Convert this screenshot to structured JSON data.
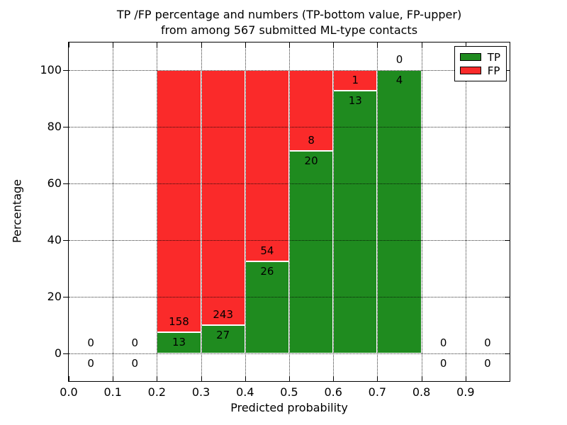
{
  "figure": {
    "title_line1": "TP /FP percentage and numbers (TP-bottom value, FP-upper)",
    "title_line2": "from among 567 submitted ML-type contacts"
  },
  "chart_data": {
    "type": "bar",
    "subtype": "stacked-percentage-histogram",
    "title": "TP /FP percentage and numbers (TP-bottom value, FP-upper)\nfrom among 567 submitted ML-type contacts",
    "xlabel": "Predicted probability",
    "ylabel": "Percentage",
    "total_contacts": 567,
    "xlim": [
      0.0,
      1.0
    ],
    "ylim": [
      -9.75,
      109.75
    ],
    "x_ticks": [
      0.0,
      0.1,
      0.2,
      0.3,
      0.4,
      0.5,
      0.6,
      0.7,
      0.8,
      0.9
    ],
    "x_tick_labels": [
      "0.0",
      "0.1",
      "0.2",
      "0.3",
      "0.4",
      "0.5",
      "0.6",
      "0.7",
      "0.8",
      "0.9"
    ],
    "y_ticks": [
      0,
      20,
      40,
      60,
      80,
      100
    ],
    "y_tick_labels": [
      "0",
      "20",
      "40",
      "60",
      "80",
      "100"
    ],
    "grid": "dotted black, both axes, drawn over bars",
    "bin_width": 0.1,
    "bins": [
      {
        "range": [
          0.0,
          0.1
        ],
        "tp": 0,
        "fp": 0,
        "tp_pct": 0,
        "fp_pct": 0
      },
      {
        "range": [
          0.1,
          0.2
        ],
        "tp": 0,
        "fp": 0,
        "tp_pct": 0,
        "fp_pct": 0
      },
      {
        "range": [
          0.2,
          0.3
        ],
        "tp": 13,
        "fp": 158,
        "tp_pct": 7.6,
        "fp_pct": 92.4
      },
      {
        "range": [
          0.3,
          0.4
        ],
        "tp": 27,
        "fp": 243,
        "tp_pct": 10.0,
        "fp_pct": 90.0
      },
      {
        "range": [
          0.4,
          0.5
        ],
        "tp": 26,
        "fp": 54,
        "tp_pct": 32.5,
        "fp_pct": 67.5
      },
      {
        "range": [
          0.5,
          0.6
        ],
        "tp": 20,
        "fp": 8,
        "tp_pct": 71.4,
        "fp_pct": 28.6
      },
      {
        "range": [
          0.6,
          0.7
        ],
        "tp": 13,
        "fp": 1,
        "tp_pct": 92.9,
        "fp_pct": 7.1
      },
      {
        "range": [
          0.7,
          0.8
        ],
        "tp": 4,
        "fp": 0,
        "tp_pct": 100.0,
        "fp_pct": 0.0
      },
      {
        "range": [
          0.8,
          0.9
        ],
        "tp": 0,
        "fp": 0,
        "tp_pct": 0,
        "fp_pct": 0
      },
      {
        "range": [
          0.9,
          1.0
        ],
        "tp": 0,
        "fp": 0,
        "tp_pct": 0,
        "fp_pct": 0
      }
    ],
    "legend": {
      "position": "upper right",
      "entries": [
        {
          "label": "TP",
          "color": "#1f8b1f"
        },
        {
          "label": "FP",
          "color": "#fa2a2a"
        }
      ]
    }
  },
  "colors": {
    "tp": "#1f8b1f",
    "fp": "#fa2a2a",
    "grid": "#000000",
    "spine": "#000000",
    "background": "#ffffff",
    "label_text": "#000000"
  }
}
